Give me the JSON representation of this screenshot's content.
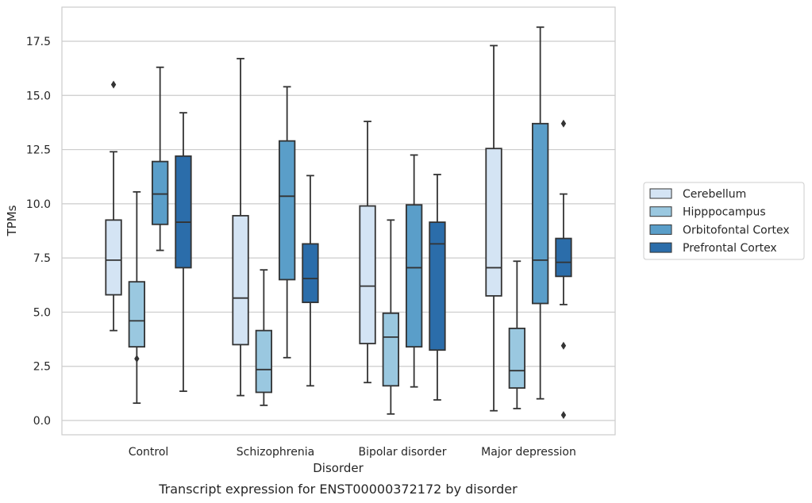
{
  "chart_data": {
    "type": "box",
    "title": "Transcript expression for ENST00000372172 by disorder",
    "xlabel": "Disorder",
    "ylabel": "TPMs",
    "ylim": [
      -0.6,
      19.0
    ],
    "yticks": [
      "0.0",
      "2.5",
      "5.0",
      "7.5",
      "10.0",
      "12.5",
      "15.0",
      "17.5"
    ],
    "grid": true,
    "legend_position": "right",
    "categories": [
      "Control",
      "Schizophrenia",
      "Bipolar disorder",
      "Major depression"
    ],
    "series": [
      {
        "name": "Cerebellum",
        "color": "#d4e4f4",
        "boxes": [
          {
            "low": 4.15,
            "q1": 5.8,
            "median": 7.4,
            "q3": 9.25,
            "high": 12.4,
            "outliers": [
              15.5
            ]
          },
          {
            "low": 1.15,
            "q1": 3.5,
            "median": 5.65,
            "q3": 9.45,
            "high": 16.7,
            "outliers": []
          },
          {
            "low": 1.75,
            "q1": 3.55,
            "median": 6.2,
            "q3": 9.9,
            "high": 13.8,
            "outliers": []
          },
          {
            "low": 0.45,
            "q1": 5.75,
            "median": 7.05,
            "q3": 12.55,
            "high": 17.3,
            "outliers": []
          }
        ]
      },
      {
        "name": "Hipppocampus",
        "color": "#9ac8e0",
        "boxes": [
          {
            "low": 0.8,
            "q1": 3.4,
            "median": 4.6,
            "q3": 6.4,
            "high": 10.55,
            "outliers": [
              2.85
            ]
          },
          {
            "low": 0.7,
            "q1": 1.3,
            "median": 2.35,
            "q3": 4.15,
            "high": 6.95,
            "outliers": []
          },
          {
            "low": 0.3,
            "q1": 1.6,
            "median": 3.85,
            "q3": 4.95,
            "high": 9.25,
            "outliers": []
          },
          {
            "low": 0.55,
            "q1": 1.5,
            "median": 2.3,
            "q3": 4.25,
            "high": 7.35,
            "outliers": []
          }
        ]
      },
      {
        "name": "Orbitofontal Cortex",
        "color": "#5a9ec9",
        "boxes": [
          {
            "low": 7.85,
            "q1": 9.05,
            "median": 10.45,
            "q3": 11.95,
            "high": 16.3,
            "outliers": []
          },
          {
            "low": 2.9,
            "q1": 6.5,
            "median": 10.35,
            "q3": 12.9,
            "high": 15.4,
            "outliers": []
          },
          {
            "low": 1.55,
            "q1": 3.4,
            "median": 7.05,
            "q3": 9.95,
            "high": 12.25,
            "outliers": []
          },
          {
            "low": 1.0,
            "q1": 5.4,
            "median": 7.4,
            "q3": 13.7,
            "high": 18.15,
            "outliers": []
          }
        ]
      },
      {
        "name": "Prefrontal Cortex",
        "color": "#2b6daa",
        "boxes": [
          {
            "low": 1.35,
            "q1": 7.05,
            "median": 9.15,
            "q3": 12.2,
            "high": 14.2,
            "outliers": []
          },
          {
            "low": 1.6,
            "q1": 5.45,
            "median": 6.55,
            "q3": 8.15,
            "high": 11.3,
            "outliers": []
          },
          {
            "low": 0.95,
            "q1": 3.25,
            "median": 8.15,
            "q3": 9.15,
            "high": 11.35,
            "outliers": []
          },
          {
            "low": 5.35,
            "q1": 6.65,
            "median": 7.3,
            "q3": 8.4,
            "high": 10.45,
            "outliers": [
              13.7,
              3.45,
              0.25
            ]
          }
        ]
      }
    ]
  }
}
